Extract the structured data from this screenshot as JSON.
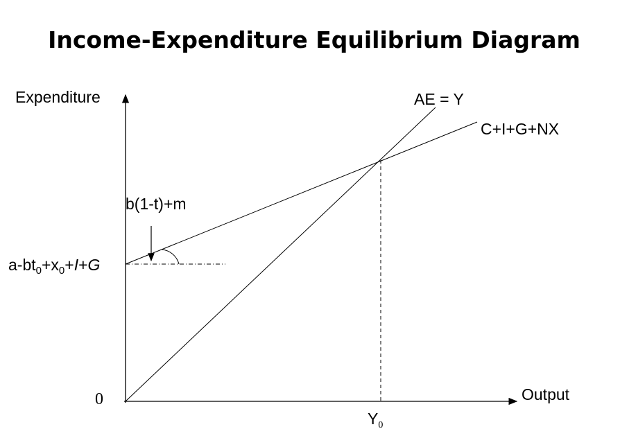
{
  "title": "Income-Expenditure Equilibrium Diagram",
  "y_axis_label": "Expenditure",
  "x_axis_label": "Output",
  "origin_label": "0",
  "lines": {
    "ae_label": "AE = Y",
    "cign_label": "C+I+G+NX"
  },
  "slope_label": "b(1-t)+m",
  "intercept_label": {
    "parts": [
      "a-bt",
      "0",
      "+x",
      "0",
      "+",
      "I",
      "+",
      "G"
    ]
  },
  "equilibrium_label": {
    "parts": [
      "Y",
      "0"
    ]
  }
}
